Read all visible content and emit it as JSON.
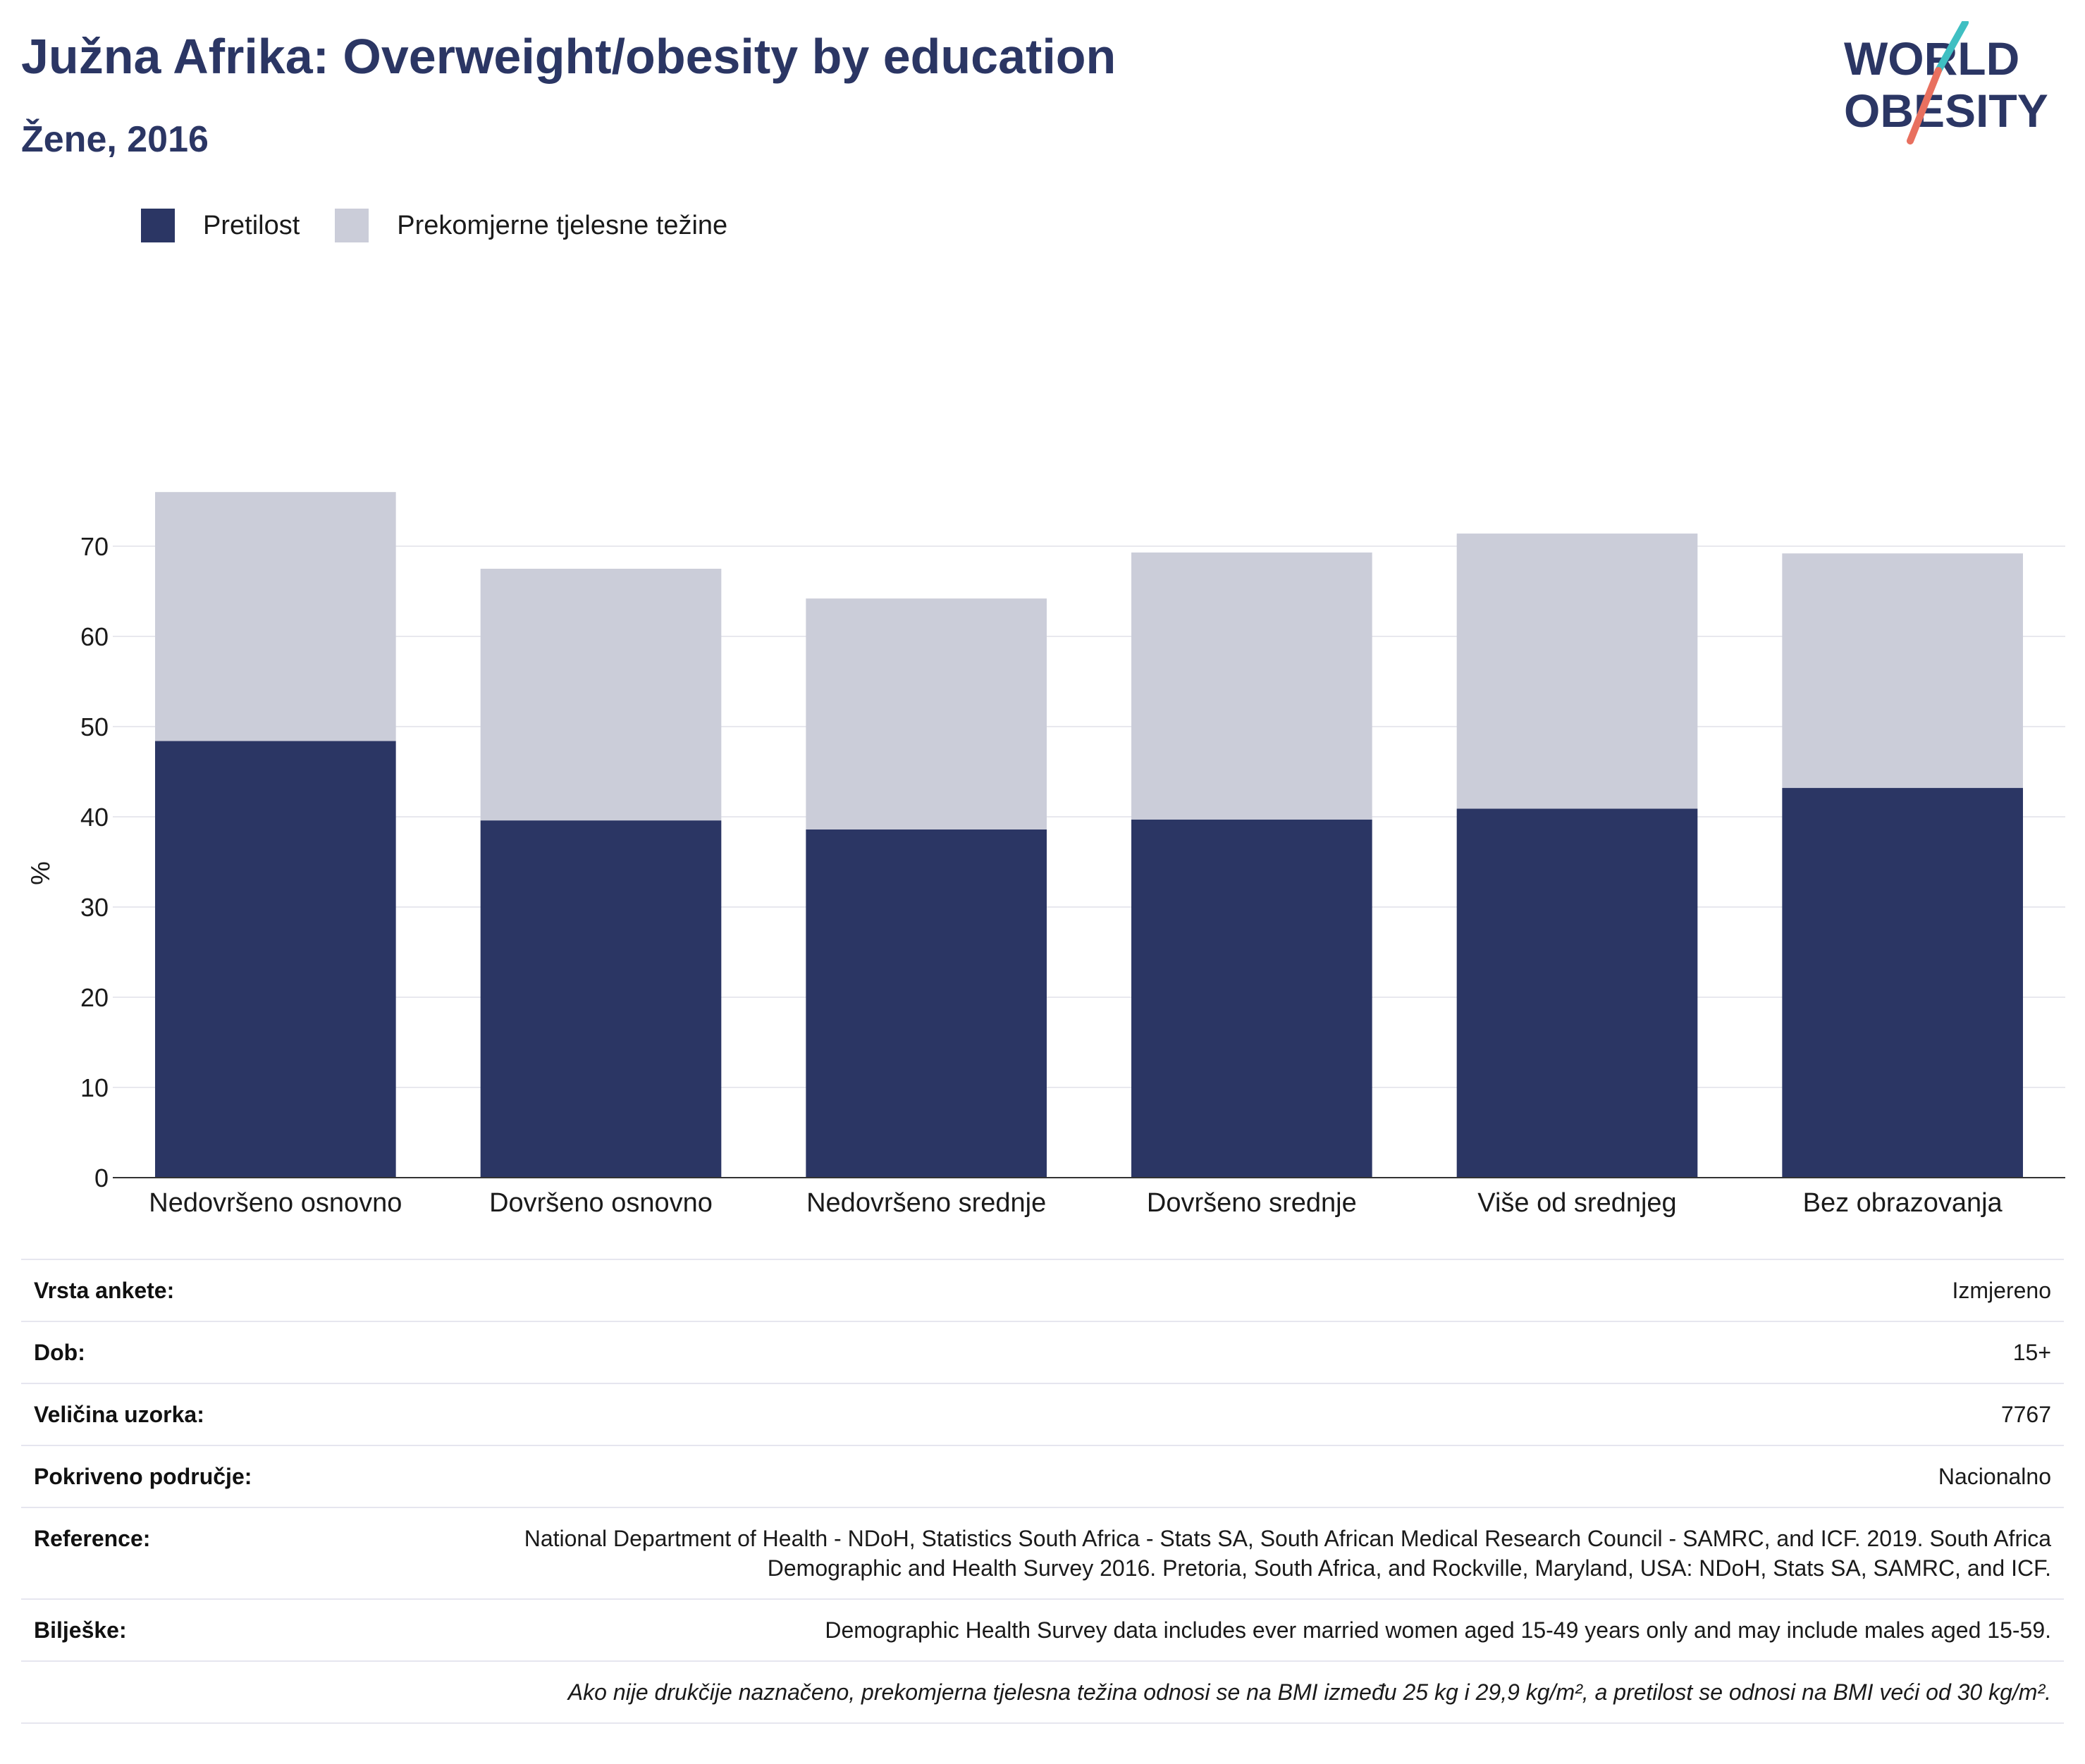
{
  "header": {
    "title": "Južna Afrika: Overweight/obesity by education",
    "subtitle": "Žene, 2016"
  },
  "logo": {
    "line1": "WORLD",
    "line2": "OBESITY",
    "accent_teal": "#3fbfc2",
    "accent_red": "#e8705f",
    "color": "#2b3664"
  },
  "legend": [
    {
      "label": "Pretilost",
      "color": "#2b3664"
    },
    {
      "label": "Prekomjerne tjelesne težine",
      "color": "#cbcdd9"
    }
  ],
  "chart_data": {
    "type": "bar",
    "stacked": true,
    "categories": [
      "Nedovršeno osnovno",
      "Dovršeno osnovno",
      "Nedovršeno srednje",
      "Dovršeno srednje",
      "Više od srednjeg",
      "Bez obrazovanja"
    ],
    "series": [
      {
        "name": "Pretilost",
        "color": "#2b3664",
        "values": [
          48.4,
          39.6,
          38.6,
          39.7,
          40.9,
          43.2
        ]
      },
      {
        "name": "Prekomjerne tjelesne težine",
        "color": "#cbcdd9",
        "values": [
          27.6,
          27.9,
          25.6,
          29.6,
          30.5,
          26.0
        ]
      }
    ],
    "ylabel": "%",
    "ylim": [
      0,
      80
    ],
    "yticks": [
      0,
      10,
      20,
      30,
      40,
      50,
      60,
      70
    ],
    "grid": true,
    "legend_position": "top-left"
  },
  "info": {
    "rows": [
      {
        "key": "Vrsta ankete:",
        "value": "Izmjereno"
      },
      {
        "key": "Dob:",
        "value": "15+"
      },
      {
        "key": "Veličina uzorka:",
        "value": "7767"
      },
      {
        "key": "Pokriveno područje:",
        "value": "Nacionalno"
      },
      {
        "key": "Reference:",
        "value": "National Department of Health - NDoH, Statistics South Africa - Stats SA, South African Medical Research Council - SAMRC, and ICF. 2019. South Africa Demographic and Health Survey 2016. Pretoria, South Africa, and Rockville, Maryland, USA: NDoH, Stats SA, SAMRC, and ICF."
      },
      {
        "key": "Bilješke:",
        "value": "Demographic Health Survey data includes ever married women aged 15-49 years only and may include males aged 15-59."
      }
    ],
    "footnote": "Ako nije drukčije naznačeno, prekomjerna tjelesna težina odnosi se na BMI između 25 kg i 29,9 kg/m², a pretilost se odnosi na BMI veći od 30 kg/m²."
  }
}
